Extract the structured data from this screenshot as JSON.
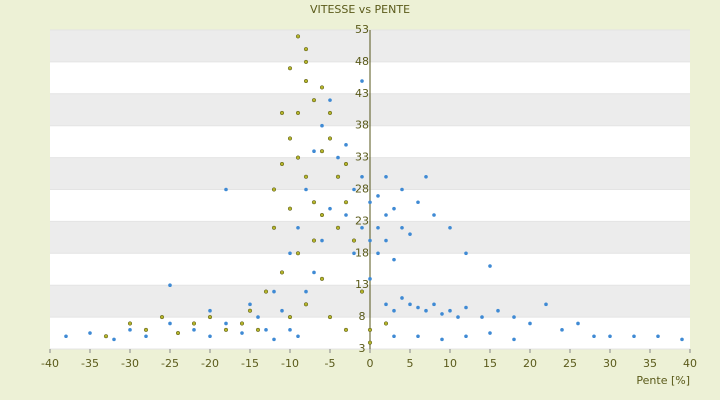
{
  "chart_data": {
    "type": "scatter",
    "title": "VITESSE vs PENTE",
    "x_label": "Pente [%]",
    "xlim": [
      -40,
      40
    ],
    "xticks": [
      -40,
      -35,
      -30,
      -25,
      -20,
      -15,
      -10,
      -5,
      0,
      5,
      10,
      15,
      20,
      25,
      30,
      35,
      40
    ],
    "ylim": [
      3,
      53
    ],
    "yticks": [
      3,
      8,
      13,
      18,
      23,
      28,
      33,
      38,
      43,
      48,
      53
    ],
    "grid": true,
    "series": [
      {
        "color": "#3f8ad4",
        "x": [
          -38,
          -35,
          -32,
          -30,
          -28,
          -25,
          -22,
          -20,
          -18,
          -16,
          -14,
          -13,
          -12,
          -11,
          -10,
          -9,
          -8,
          -7,
          -6,
          -5,
          -4,
          -3,
          -2,
          -1,
          -8,
          -9,
          -10,
          -6,
          -5,
          -4,
          -3,
          -2,
          -1,
          0,
          0,
          0,
          1,
          1,
          1,
          2,
          2,
          2,
          3,
          3,
          4,
          4,
          5,
          6,
          7,
          8,
          10,
          12,
          15,
          2,
          3,
          4,
          5,
          6,
          7,
          8,
          9,
          10,
          11,
          12,
          14,
          16,
          18,
          20,
          22,
          24,
          26,
          28,
          30,
          33,
          36,
          39,
          3,
          6,
          9,
          12,
          15,
          18,
          -1,
          -7,
          -12,
          -15,
          -18,
          -20,
          -25
        ],
        "values": [
          5,
          5.5,
          4.5,
          6,
          5,
          7,
          6,
          5,
          7,
          5.5,
          8,
          6,
          4.5,
          9,
          6,
          5,
          12,
          15,
          20,
          25,
          30,
          35,
          28,
          22,
          28,
          22,
          18,
          38,
          42,
          33,
          24,
          18,
          30,
          26,
          20,
          14,
          22,
          27,
          18,
          24,
          30,
          20,
          25,
          17,
          22,
          28,
          21,
          26,
          30,
          24,
          22,
          18,
          16,
          10,
          9,
          11,
          10,
          9.5,
          9,
          10,
          8.5,
          9,
          8,
          9.5,
          8,
          9,
          8,
          7,
          10,
          6,
          7,
          5,
          5,
          5,
          5,
          4.5,
          5,
          5,
          4.5,
          5,
          5.5,
          4.5,
          45,
          34,
          12,
          10,
          28,
          9,
          13
        ]
      },
      {
        "color": "#b5b52a",
        "x": [
          -9,
          -8,
          -10,
          -8,
          -9,
          -7,
          -10,
          -11,
          -12,
          -10,
          -8,
          -6,
          -5,
          -4,
          -3,
          -6,
          -7,
          -9,
          -11,
          -12,
          -13,
          -5,
          -4,
          -3,
          -2,
          -6,
          -8,
          -10,
          -14,
          -16,
          -18,
          -20,
          -22,
          -24,
          -26,
          -28,
          -30,
          -33,
          -15,
          -5,
          -3,
          -1,
          0,
          0,
          2,
          -7,
          -9,
          -11,
          -6,
          -8
        ],
        "values": [
          52,
          50,
          47,
          45,
          40,
          42,
          36,
          32,
          28,
          25,
          30,
          34,
          36,
          30,
          26,
          24,
          20,
          18,
          15,
          22,
          12,
          40,
          22,
          32,
          20,
          14,
          10,
          8,
          6,
          7,
          6,
          8,
          7,
          5.5,
          8,
          6,
          7,
          5,
          9,
          8,
          6,
          12,
          6,
          4,
          7,
          26,
          33,
          40,
          44,
          48
        ]
      }
    ]
  }
}
